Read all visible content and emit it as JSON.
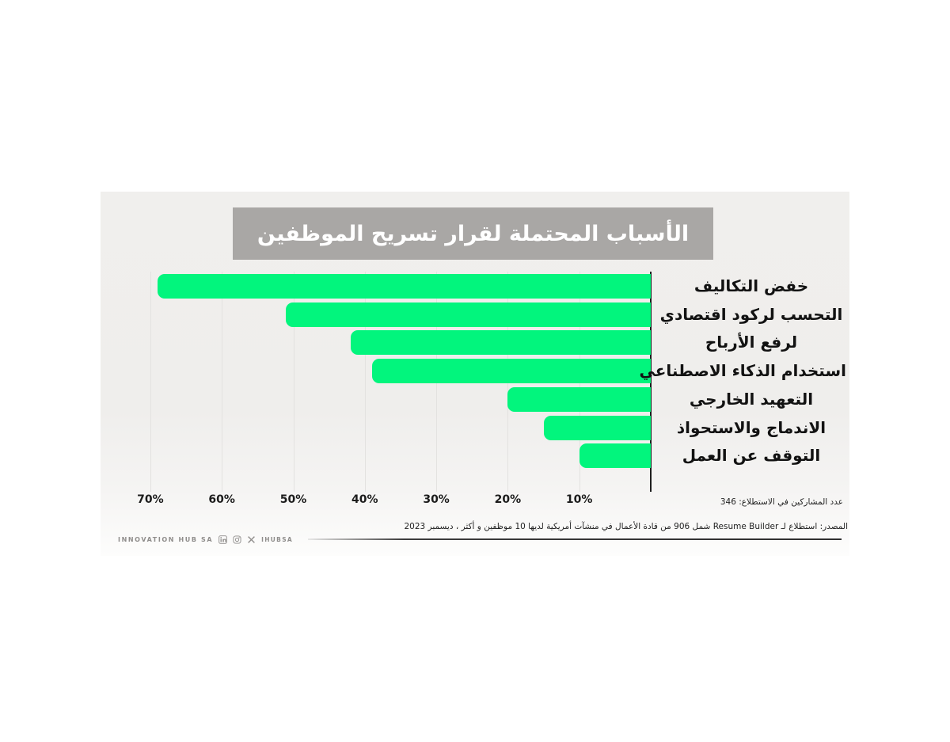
{
  "title": {
    "text": "الأسباب المحتملة لقرار تسريح الموظفين",
    "bg": "#a9a7a5",
    "color": "#ffffff"
  },
  "chart_data": {
    "type": "bar",
    "orientation": "horizontal",
    "direction": "right-to-left",
    "title": "الأسباب المحتملة لقرار تسريح الموظفين",
    "categories": [
      "خفض التكاليف",
      "التحسب لركود اقتصادي",
      "لرفع الأرباح",
      "استخدام الذكاء الاصطناعي",
      "التعهيد الخارجي",
      "الاندماج والاستحواذ",
      "التوقف عن العمل"
    ],
    "values": [
      69,
      51,
      42,
      39,
      20,
      15,
      10
    ],
    "unit": "%",
    "x_ticks": [
      "70%",
      "60%",
      "50%",
      "40%",
      "30%",
      "20%",
      "10%"
    ],
    "x_tick_values": [
      70,
      60,
      50,
      40,
      30,
      20,
      10
    ],
    "xlim": [
      0,
      77
    ],
    "grid": true,
    "legend": false,
    "bar_color": "#02f57d",
    "axis_color": "#1e1e1e",
    "gridline_color": "#e3e2e0"
  },
  "notes": {
    "participants": "عدد المشاركين في الاستطلاع: 346",
    "source": "المصدر: استطلاع لـ Resume Builder شمل 906 من قادة الأعمال في منشآت أمريكية لديها 10 موظفين و أكثر ، ديسمبر 2023"
  },
  "footer": {
    "brand": "INNOVATION HUB SA",
    "handle": "IHUBSA",
    "icons": [
      "linkedin-icon",
      "instagram-icon",
      "x-icon"
    ]
  }
}
